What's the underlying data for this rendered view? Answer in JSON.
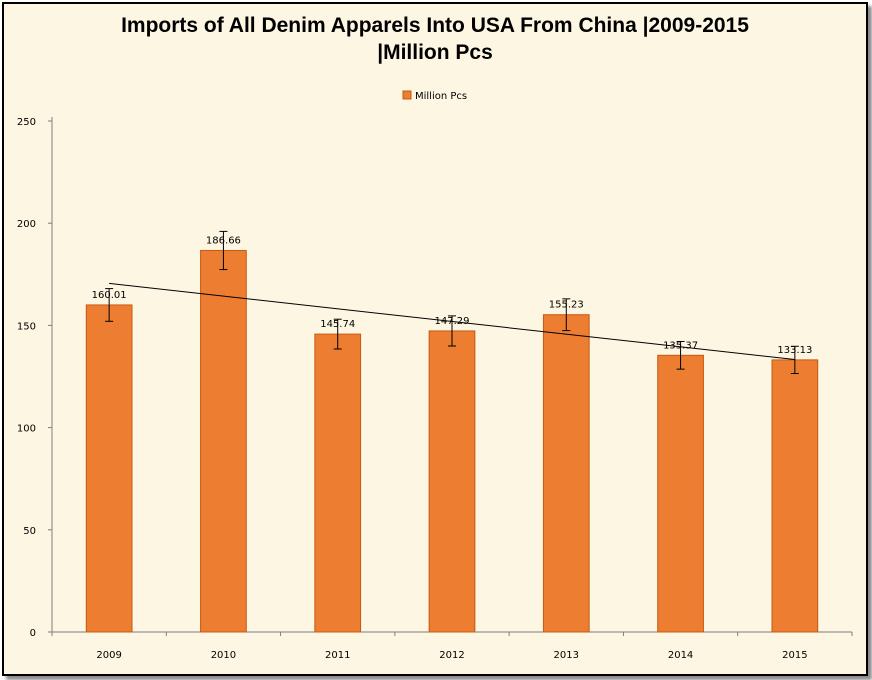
{
  "chart_data": {
    "type": "bar",
    "title_line1": "Imports of All Denim Apparels Into USA From China |2009-2015",
    "title_line2": "|Million Pcs",
    "categories": [
      "2009",
      "2010",
      "2011",
      "2012",
      "2013",
      "2014",
      "2015"
    ],
    "series": [
      {
        "name": "Million Pcs",
        "values": [
          160.01,
          186.66,
          145.74,
          147.29,
          155.23,
          135.37,
          133.13
        ],
        "labels": [
          "160.01",
          "186.66",
          "145.74",
          "147.29",
          "155.23",
          "135.37",
          "133.13"
        ]
      }
    ],
    "ylim": [
      0,
      250
    ],
    "yticks": [
      0,
      50,
      100,
      150,
      200,
      250
    ],
    "error_bars": true,
    "trendline": "linear",
    "legend_position": "top-center",
    "grid": false,
    "colors": {
      "bar": "#ed7d31",
      "bar_border": "#c55a11",
      "background": "#fdf6e3"
    }
  }
}
